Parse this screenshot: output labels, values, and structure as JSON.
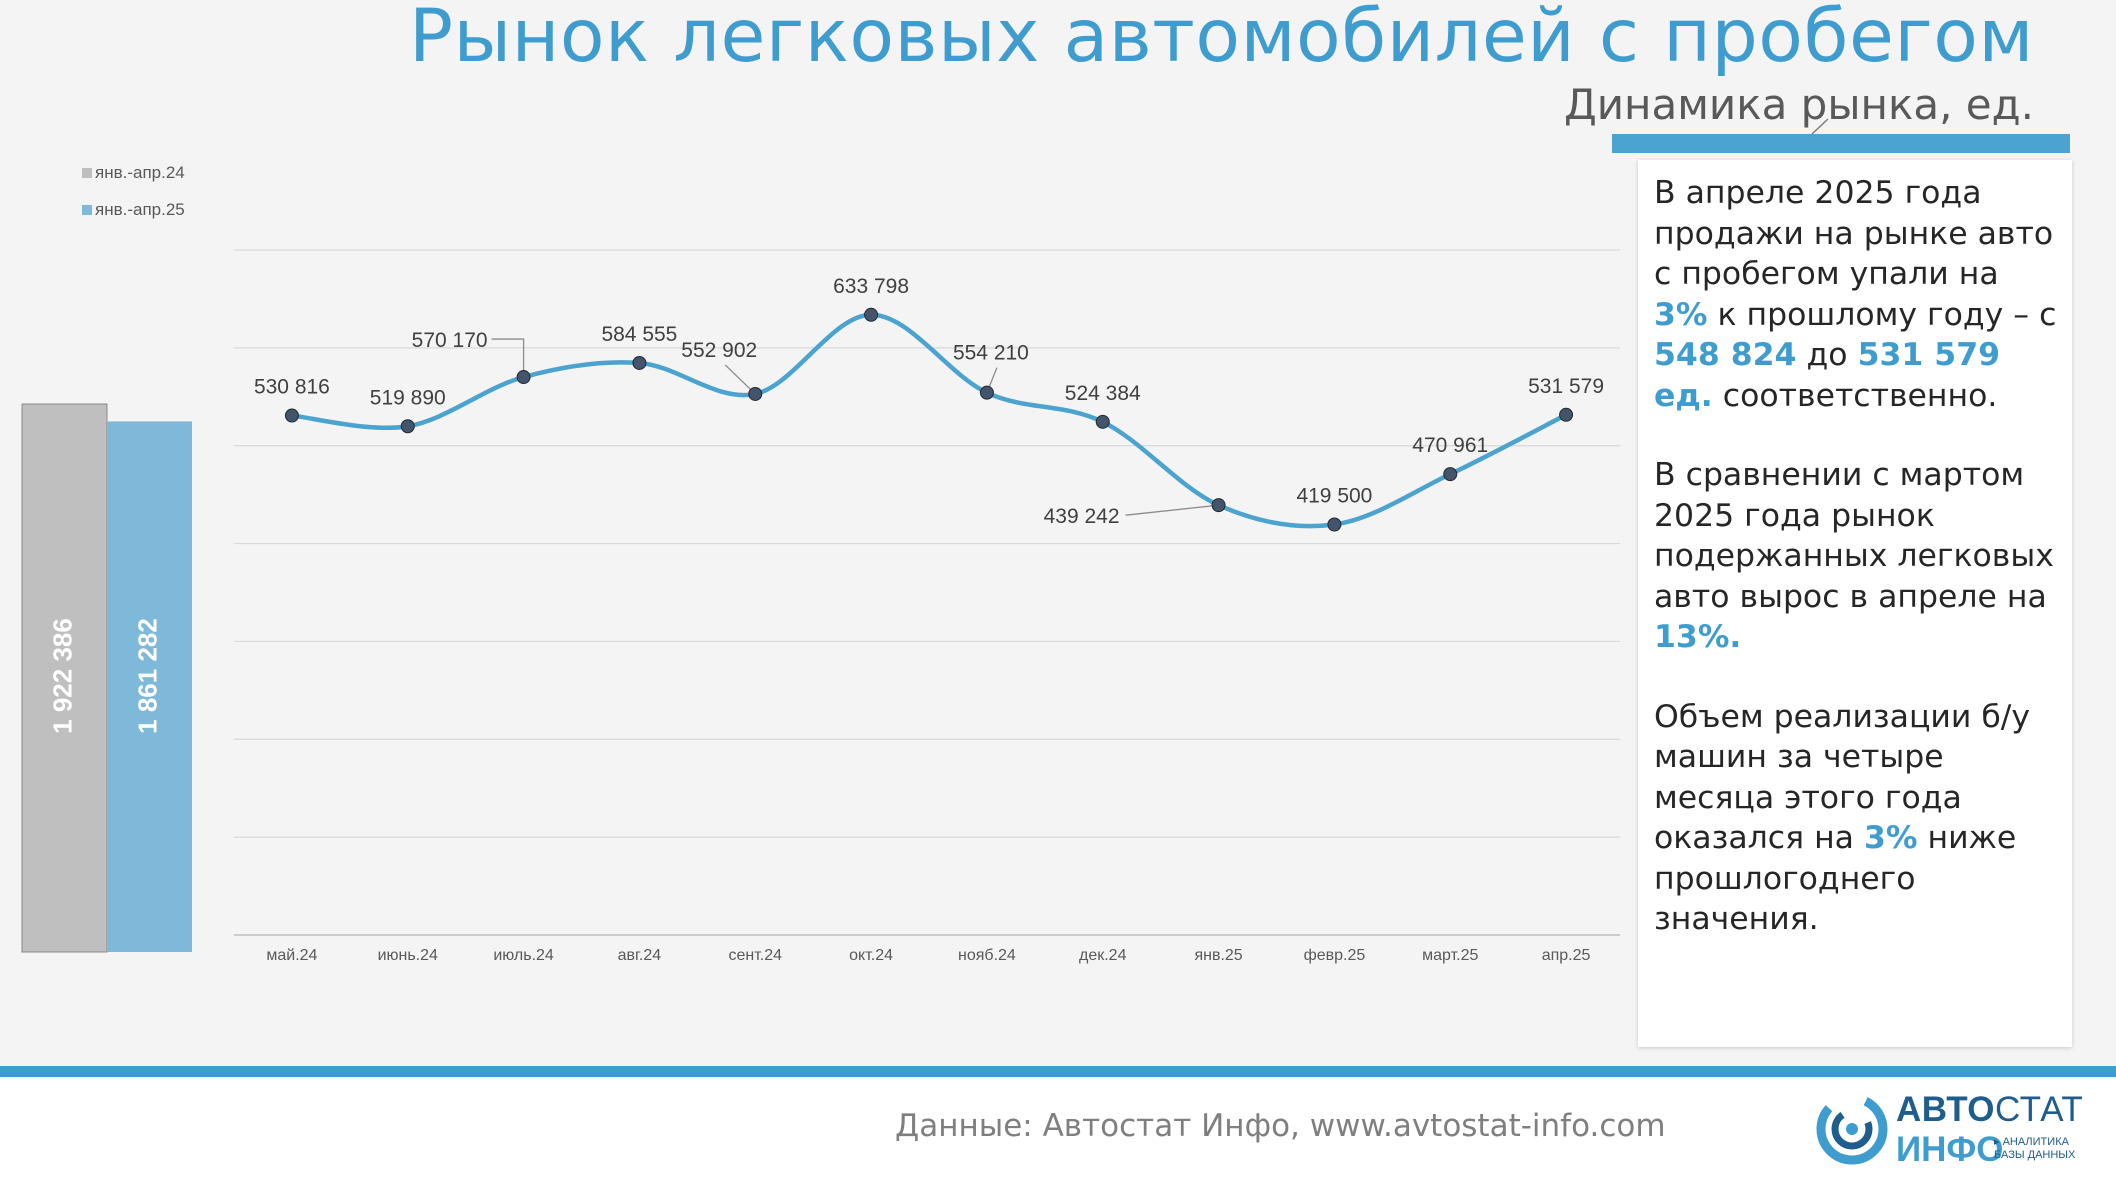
{
  "title": "Рынок легковых автомобилей с пробегом",
  "subtitle": "Динамика рынка, ед.",
  "colors": {
    "accent": "#3f9ccf",
    "line": "#4ba3cf",
    "bar_2024": "#bfbfbf",
    "bar_2025": "#7eb9da",
    "marker": "#44546a"
  },
  "legend": [
    {
      "label": "янв.-апр.24",
      "color": "#bfbfbf"
    },
    {
      "label": "янв.-апр.25",
      "color": "#7eb9da"
    }
  ],
  "chart_data": [
    {
      "type": "bar",
      "categories": [
        "янв.-апр.24",
        "янв.-апр.25"
      ],
      "values": [
        1922386,
        1861282
      ],
      "labels": [
        "1 922 386",
        "1 861 282"
      ]
    },
    {
      "type": "line",
      "categories": [
        "май.24",
        "июнь.24",
        "июль.24",
        "авг.24",
        "сент.24",
        "окт.24",
        "нояб.24",
        "дек.24",
        "янв.25",
        "февр.25",
        "март.25",
        "апр.25"
      ],
      "values": [
        530816,
        519890,
        570170,
        584555,
        552902,
        633798,
        554210,
        524384,
        439242,
        419500,
        470961,
        531579
      ],
      "labels": [
        "530 816",
        "519 890",
        "570 170",
        "584 555",
        "552 902",
        "633 798",
        "554 210",
        "524 384",
        "439 242",
        "419 500",
        "470 961",
        "531 579"
      ],
      "gridlines": true,
      "ylim": [
        0,
        700000
      ]
    }
  ],
  "textbox": {
    "p1": [
      "В апреле 2025 года продажи на рынке авто с пробегом упали на ",
      "3%",
      " к прошлому году – с ",
      "548 824",
      " до ",
      "531 579 ед.",
      " соответственно."
    ],
    "p2": [
      "В сравнении с мартом 2025 года рынок подержанных легковых авто вырос в апреле на ",
      "13%."
    ],
    "p3": [
      "Объем реализации б/у машин за четыре месяца этого года оказался на ",
      "3%",
      " ниже прошлогоднего значения."
    ]
  },
  "footer": {
    "source": "Данные: Автостат Инфо, www.avtostat-info.com",
    "logo": {
      "top_bold": "АВТО",
      "top_light": "СТАТ",
      "bottom": "ИНФО",
      "tag1": "▸ АНАЛИТИКА",
      "tag2": "БАЗЫ ДАННЫХ"
    }
  }
}
